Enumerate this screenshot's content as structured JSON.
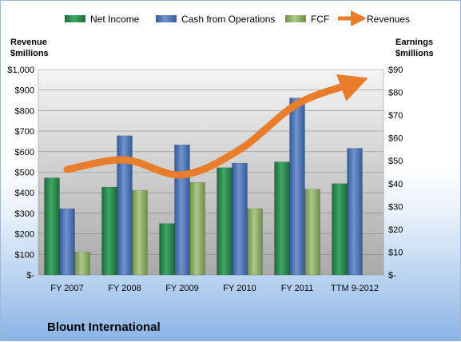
{
  "chart_data": {
    "type": "bar",
    "caption": "Blount International",
    "categories": [
      "FY 2007",
      "FY 2008",
      "FY 2009",
      "FY 2010",
      "FY 2011",
      "TTM 9-2012"
    ],
    "left_axis": {
      "title_line1": "Revenue",
      "title_line2": "$millions",
      "ticks": [
        "$1,000",
        "$900",
        "$800",
        "$700",
        "$600",
        "$500",
        "$400",
        "$300",
        "$200",
        "$100",
        "$-"
      ],
      "ylim": [
        0,
        1000
      ]
    },
    "right_axis": {
      "title_line1": "Earnings",
      "title_line2": "$millions",
      "ticks": [
        "$90",
        "$80",
        "$70",
        "$60",
        "$50",
        "$40",
        "$30",
        "$20",
        "$10",
        "$-"
      ],
      "ylim": [
        0,
        90
      ]
    },
    "series": [
      {
        "name": "Net Income",
        "axis": "right",
        "kind": "bar",
        "color": "#2e8b4e",
        "values": [
          42.5,
          38.5,
          22.5,
          47,
          49.5,
          40
        ]
      },
      {
        "name": "Cash from Operations",
        "axis": "right",
        "kind": "bar",
        "color": "#4f73b0",
        "values": [
          29,
          61,
          57,
          49,
          77.5,
          55.5
        ]
      },
      {
        "name": "FCF",
        "axis": "right",
        "kind": "bar",
        "color": "#8fb069",
        "values": [
          10,
          37,
          40.5,
          29,
          37.5,
          null
        ]
      },
      {
        "name": "Revenues",
        "axis": "left",
        "kind": "line",
        "color": "#e87d2c",
        "values": [
          513,
          560,
          487,
          610,
          832,
          935
        ]
      }
    ],
    "grid": true,
    "legend_position": "top"
  }
}
